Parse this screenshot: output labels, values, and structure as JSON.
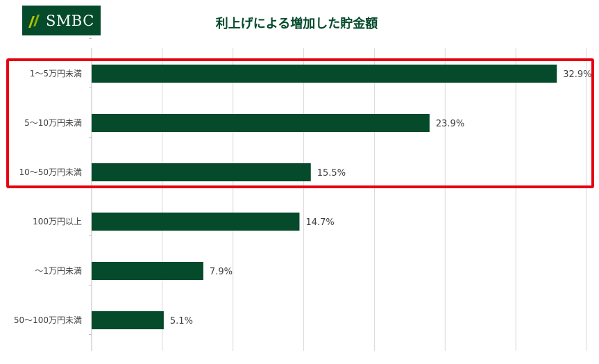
{
  "logo": {
    "text": "SMBC"
  },
  "chart_data": {
    "type": "bar",
    "orientation": "horizontal",
    "title": "利上げによる増加した貯金額",
    "categories": [
      "1～5万円未満",
      "5～10万円未満",
      "10～50万円未満",
      "100万円以上",
      "～1万円未満",
      "50～100万円未満"
    ],
    "values": [
      32.9,
      23.9,
      15.5,
      14.7,
      7.9,
      5.1
    ],
    "value_labels": [
      "32.9%",
      "23.9%",
      "15.5%",
      "14.7%",
      "7.9%",
      "5.1%"
    ],
    "xlim": [
      0,
      35
    ],
    "grid": true,
    "bar_color": "#044a2b",
    "highlight_color": "#e60012",
    "highlighted_categories": [
      "1～5万円未満",
      "5～10万円未満",
      "10～50万円未満"
    ]
  }
}
